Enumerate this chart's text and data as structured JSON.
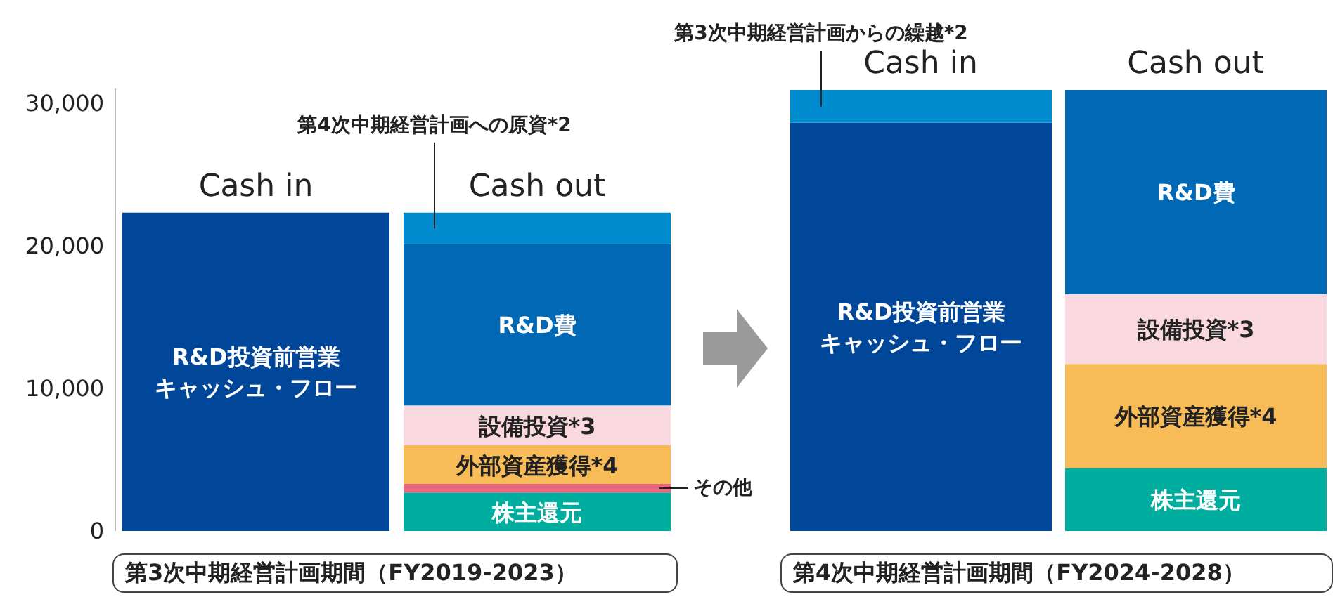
{
  "chart_data": [
    {
      "type": "bar",
      "stacked": true,
      "categories": [
        "Cash in",
        "Cash out"
      ],
      "xlabel": "第3次中期経営計画期間（FY2019-2023）",
      "ylim": [
        0,
        31000
      ],
      "yticks": [
        0,
        {
          "value": 10000,
          "label": "10,000"
        },
        {
          "value": 20000,
          "label": "20,000"
        },
        {
          "value": 30000,
          "label": "30,000"
        }
      ],
      "grid": false,
      "legend": false,
      "series": [
        {
          "name": "R&D投資前営業キャッシュ・フロー",
          "color": "#00479a",
          "values": [
            22300,
            null
          ]
        },
        {
          "name": "株主還元",
          "color": "#00ae9f",
          "values": [
            null,
            2700
          ]
        },
        {
          "name": "その他",
          "color": "#e9677f",
          "values": [
            null,
            600
          ]
        },
        {
          "name": "外部資産獲得*4",
          "color": "#f7bc58",
          "values": [
            null,
            2700
          ]
        },
        {
          "name": "設備投資*3",
          "color": "#f9d9df",
          "values": [
            null,
            2800
          ]
        },
        {
          "name": "R&D費",
          "color": "#0068b4",
          "values": [
            null,
            11300
          ]
        },
        {
          "name": "第4次中期経営計画への原資*2",
          "color": "#008ccf",
          "values": [
            null,
            2200
          ]
        }
      ]
    },
    {
      "type": "bar",
      "stacked": true,
      "categories": [
        "Cash in",
        "Cash out"
      ],
      "xlabel": "第4次中期経営計画期間（FY2024-2028）",
      "ylim": [
        0,
        31000
      ],
      "tick_labels": "x",
      "grid": false,
      "legend": false,
      "series": [
        {
          "name": "R&D投資前営業キャッシュ・フロー",
          "color": "#00479a",
          "values": [
            28600,
            null
          ]
        },
        {
          "name": "第3次中期経営計画からの繰越*2",
          "color": "#008ccf",
          "values": [
            2300,
            null
          ]
        },
        {
          "name": "株主還元",
          "color": "#00ae9f",
          "values": [
            null,
            4400
          ]
        },
        {
          "name": "外部資産獲得*4",
          "color": "#f7bc58",
          "values": [
            null,
            7300
          ]
        },
        {
          "name": "設備投資*3",
          "color": "#f9d9df",
          "values": [
            null,
            4900
          ]
        },
        {
          "name": "R&D費",
          "color": "#0068b4",
          "values": [
            null,
            14300
          ]
        }
      ]
    }
  ]
}
